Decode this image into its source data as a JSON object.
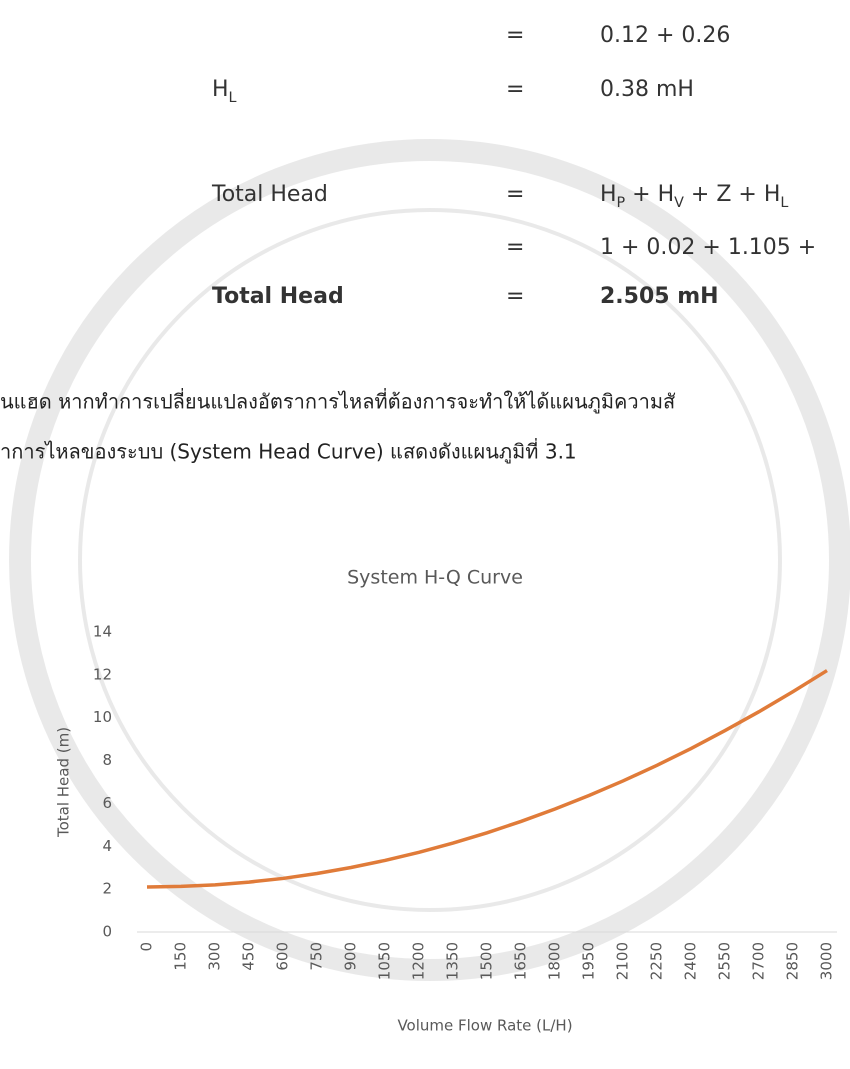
{
  "equations": [
    {
      "equals": "=",
      "value": [
        {
          "text": "0.12 + 0.26"
        }
      ]
    },
    {
      "label": [
        {
          "text": "H"
        },
        {
          "sub": "L"
        }
      ],
      "equals": "=",
      "value": [
        {
          "text": "0.38 mH"
        }
      ]
    },
    {
      "label": [
        {
          "text": "Total Head"
        }
      ],
      "equals": "=",
      "value": [
        {
          "text": "H"
        },
        {
          "sub": "P"
        },
        {
          "text": " + H"
        },
        {
          "sub": "V"
        },
        {
          "text": " + Z + H"
        },
        {
          "sub": "L"
        }
      ]
    },
    {
      "equals": "=",
      "value": [
        {
          "text": "1 + 0.02 + 1.105 +"
        }
      ]
    },
    {
      "label": [
        {
          "text": "Total Head"
        }
      ],
      "equals": "=",
      "value": [
        {
          "text": "2.505 mH"
        }
      ],
      "bold": true
    }
  ],
  "paragraph": [
    "นแฮด หากทำการเปลี่ยนแปลงอัตราการไหลที่ต้องการจะทำให้ได้แผนภูมิความสั",
    "าการไหลของระบบ (System Head Curve) แสดงดังแผนภูมิที่ 3.1"
  ],
  "chart_data": {
    "type": "line",
    "title": "System H-Q Curve",
    "x_label": "Volume Flow Rate (L/H)",
    "y_label": "Total Head (m)",
    "categories": [
      "0",
      "150",
      "300",
      "450",
      "600",
      "750",
      "900",
      "1050",
      "1200",
      "1350",
      "1500",
      "1650",
      "1800",
      "1950",
      "2100",
      "2250",
      "2400",
      "2550",
      "2700",
      "2850",
      "3000"
    ],
    "series": [
      {
        "name": "Total Head",
        "color": "#e07b39",
        "values": [
          2.1,
          2.13,
          2.2,
          2.33,
          2.5,
          2.73,
          3.01,
          3.34,
          3.72,
          4.15,
          4.63,
          5.16,
          5.74,
          6.37,
          7.05,
          7.78,
          8.56,
          9.4,
          10.28,
          11.22,
          12.2
        ]
      }
    ],
    "ylim": [
      0,
      14
    ],
    "yticks": [
      0,
      2,
      4,
      6,
      8,
      10,
      12,
      14
    ],
    "grid": false
  }
}
